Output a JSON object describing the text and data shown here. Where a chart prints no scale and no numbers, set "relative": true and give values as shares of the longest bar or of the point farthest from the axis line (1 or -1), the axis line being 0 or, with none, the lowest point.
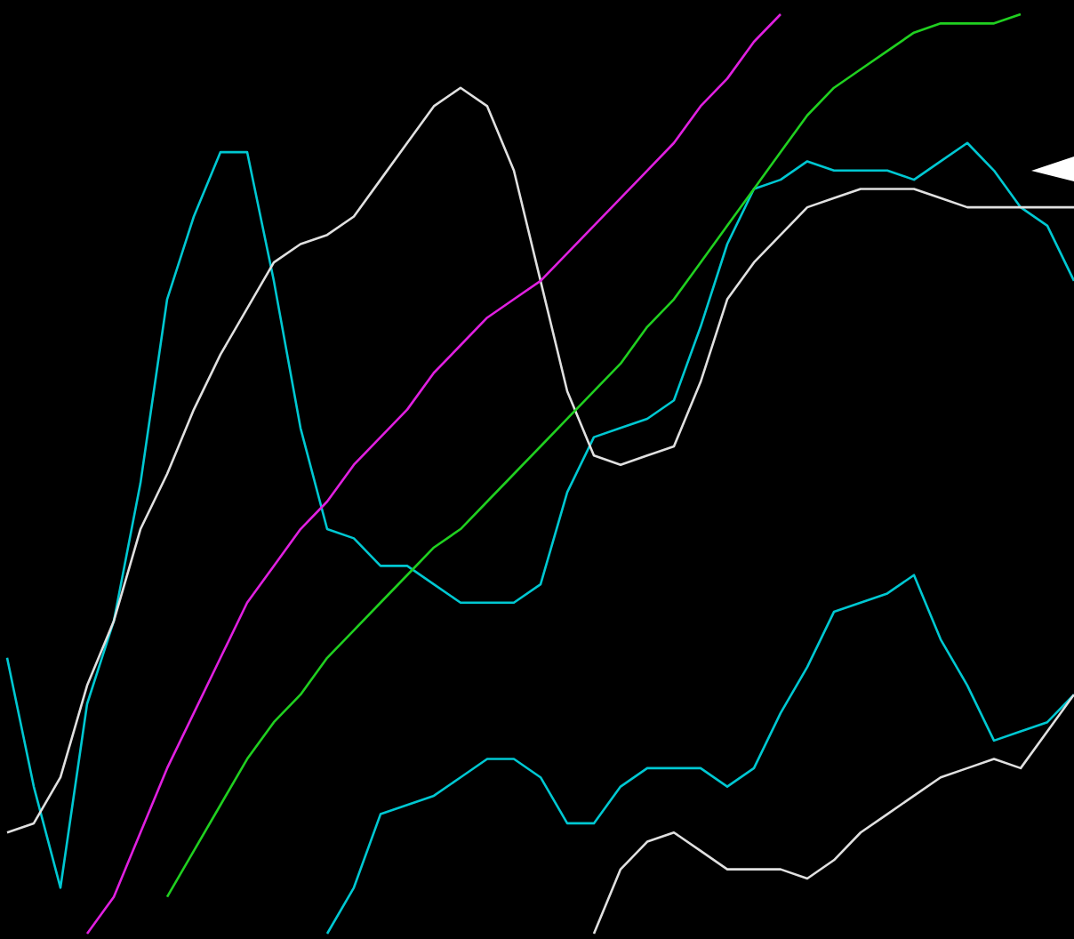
{
  "chart_data": {
    "type": "line",
    "relative": true,
    "marker": "none",
    "categories": [
      null,
      null,
      null,
      null,
      null,
      null,
      null,
      null,
      null,
      null,
      null,
      null,
      null,
      null,
      null,
      null,
      null,
      null,
      null,
      null,
      null,
      null,
      null,
      null,
      null,
      null,
      null,
      null,
      null,
      null,
      null,
      null,
      null,
      null,
      null,
      null,
      null,
      null,
      null,
      null,
      null
    ],
    "series": [
      {
        "color": "#00c8d2",
        "values": [
          0.3,
          0.16,
          0.05,
          0.25,
          0.34,
          0.49,
          0.69,
          0.78,
          0.85,
          0.85,
          0.71,
          0.55,
          0.44,
          0.43,
          0.4,
          0.4,
          0.38,
          0.36,
          0.36,
          0.36,
          0.38,
          0.48,
          0.54,
          0.55,
          0.56,
          0.58,
          0.66,
          0.75,
          0.81,
          0.82,
          0.84,
          0.83,
          0.83,
          0.83,
          0.82,
          0.84,
          0.86,
          0.83,
          0.79,
          0.77,
          0.71
        ]
      },
      {
        "color": "#e0e0e0",
        "values": [
          0.11,
          0.12,
          0.17,
          0.27,
          0.34,
          0.44,
          0.5,
          0.57,
          0.63,
          0.68,
          0.73,
          0.75,
          0.76,
          0.78,
          0.82,
          0.86,
          0.9,
          0.92,
          0.9,
          0.83,
          0.71,
          0.59,
          0.52,
          0.51,
          0.52,
          0.53,
          0.6,
          0.69,
          0.73,
          0.76,
          0.79,
          0.8,
          0.81,
          0.81,
          0.81,
          0.8,
          0.79,
          0.79,
          0.79,
          0.79,
          0.79
        ]
      },
      {
        "color": "#e020e0",
        "values": [
          null,
          null,
          null,
          0,
          0.04,
          0.11,
          0.18,
          0.24,
          0.3,
          0.36,
          0.4,
          0.44,
          0.47,
          0.51,
          0.54,
          0.57,
          0.61,
          0.64,
          0.67,
          0.69,
          0.71,
          0.74,
          0.77,
          0.8,
          0.83,
          0.86,
          0.9,
          0.93,
          0.97,
          1.0,
          null,
          null,
          null,
          null,
          null,
          null,
          null,
          null,
          null,
          null,
          null
        ]
      },
      {
        "color": "#20d020",
        "values": [
          null,
          null,
          null,
          null,
          null,
          null,
          0.04,
          0.09,
          0.14,
          0.19,
          0.23,
          0.26,
          0.3,
          0.33,
          0.36,
          0.39,
          0.42,
          0.44,
          0.47,
          0.5,
          0.53,
          0.56,
          0.59,
          0.62,
          0.66,
          0.69,
          0.73,
          0.77,
          0.81,
          0.85,
          0.89,
          0.92,
          0.94,
          0.96,
          0.98,
          0.99,
          0.99,
          0.99,
          1.0,
          null,
          null
        ]
      },
      {
        "color": "#00c8d2",
        "values": [
          null,
          null,
          null,
          null,
          null,
          null,
          null,
          null,
          null,
          null,
          null,
          null,
          0,
          0.05,
          0.13,
          0.14,
          0.15,
          0.17,
          0.19,
          0.19,
          0.17,
          0.12,
          0.12,
          0.16,
          0.18,
          0.18,
          0.18,
          0.16,
          0.18,
          0.24,
          0.29,
          0.35,
          0.36,
          0.37,
          0.39,
          0.32,
          0.27,
          0.21,
          0.22,
          0.23,
          0.26
        ]
      },
      {
        "color": "#e0e0e0",
        "values": [
          null,
          null,
          null,
          null,
          null,
          null,
          null,
          null,
          null,
          null,
          null,
          null,
          null,
          null,
          null,
          null,
          null,
          null,
          null,
          null,
          null,
          null,
          0,
          0.07,
          0.1,
          0.11,
          0.09,
          0.07,
          0.07,
          0.07,
          0.06,
          0.08,
          0.11,
          0.13,
          0.15,
          0.17,
          0.18,
          0.19,
          0.18,
          0.22,
          0.26
        ]
      }
    ]
  }
}
